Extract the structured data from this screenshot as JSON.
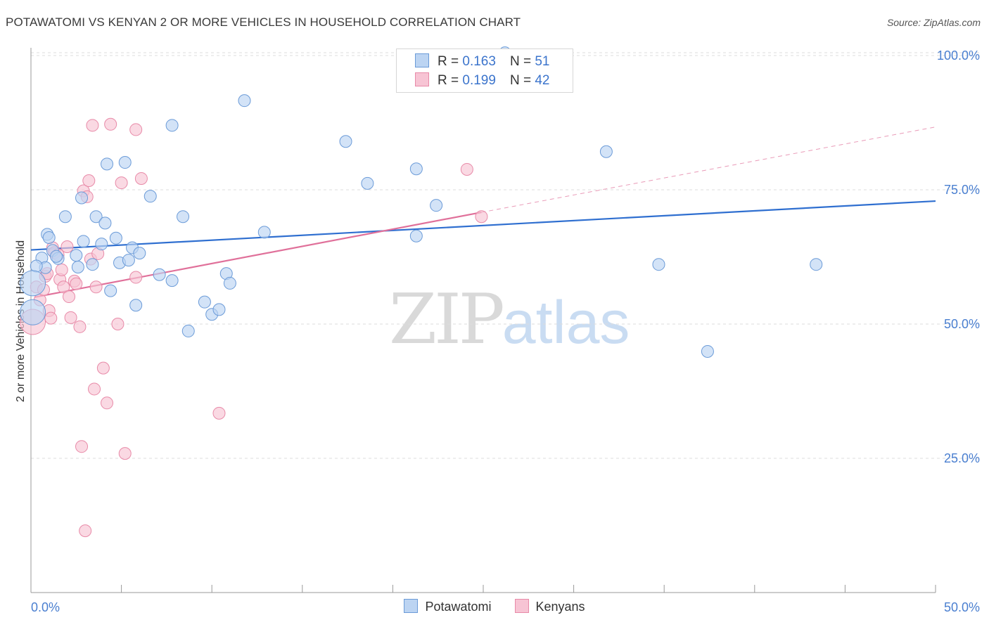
{
  "header": {
    "title": "POTAWATOMI VS KENYAN 2 OR MORE VEHICLES IN HOUSEHOLD CORRELATION CHART",
    "source": "Source: ZipAtlas.com"
  },
  "watermark": {
    "zip": "ZIP",
    "atlas": "atlas"
  },
  "legend": {
    "rows": [
      {
        "r_label": "R =",
        "r_value": "0.163",
        "n_label": "N =",
        "n_value": "51"
      },
      {
        "r_label": "R =",
        "r_value": "0.199",
        "n_label": "N =",
        "n_value": "42"
      }
    ]
  },
  "bottom_legend": [
    "Potawatomi",
    "Kenyans"
  ],
  "colors": {
    "blue_fill": "#bcd4f2",
    "blue_stroke": "#6b9bd8",
    "blue_line": "#2f6fd0",
    "pink_fill": "#f7c4d4",
    "pink_stroke": "#e88aa8",
    "pink_line": "#e0709a",
    "tick_text": "#4a7fd0",
    "grid": "#dddddd"
  },
  "chart_data": {
    "type": "scatter",
    "title": "POTAWATOMI VS KENYAN 2 OR MORE VEHICLES IN HOUSEHOLD CORRELATION CHART",
    "xlabel": "",
    "ylabel": "2 or more Vehicles in Household",
    "xlim": [
      0,
      50
    ],
    "ylim": [
      0,
      105
    ],
    "x_tick_labels": [
      "0.0%",
      "50.0%"
    ],
    "y_ticks": [
      {
        "value": 25,
        "label": "25.0%"
      },
      {
        "value": 50,
        "label": "50.0%"
      },
      {
        "value": 75,
        "label": "75.0%"
      },
      {
        "value": 100,
        "label": "100.0%"
      }
    ],
    "series": [
      {
        "name": "Potawatomi",
        "r": 0.163,
        "n": 51,
        "trend": {
          "x": [
            0,
            50
          ],
          "y": [
            63.8,
            72.9
          ],
          "extend_dashed_to": null
        },
        "points": [
          [
            0.6,
            62.3
          ],
          [
            0.9,
            66.7
          ],
          [
            1.0,
            66.1
          ],
          [
            1.2,
            63.7
          ],
          [
            1.5,
            62.2
          ],
          [
            0.8,
            60.5
          ],
          [
            0.3,
            60.8
          ],
          [
            1.4,
            62.6
          ],
          [
            1.9,
            70.0
          ],
          [
            2.5,
            62.8
          ],
          [
            2.6,
            60.6
          ],
          [
            2.8,
            73.5
          ],
          [
            2.9,
            65.4
          ],
          [
            3.4,
            61.1
          ],
          [
            3.6,
            70.0
          ],
          [
            3.9,
            64.9
          ],
          [
            4.1,
            68.8
          ],
          [
            4.2,
            79.8
          ],
          [
            4.4,
            56.2
          ],
          [
            4.7,
            66.0
          ],
          [
            4.9,
            61.4
          ],
          [
            5.2,
            80.1
          ],
          [
            5.4,
            61.9
          ],
          [
            5.6,
            64.2
          ],
          [
            5.8,
            53.5
          ],
          [
            6.0,
            63.2
          ],
          [
            6.6,
            73.8
          ],
          [
            7.1,
            59.2
          ],
          [
            7.8,
            58.1
          ],
          [
            7.8,
            87.0
          ],
          [
            8.4,
            70.0
          ],
          [
            8.7,
            48.7
          ],
          [
            9.6,
            54.1
          ],
          [
            10.0,
            51.8
          ],
          [
            10.4,
            52.7
          ],
          [
            10.8,
            59.4
          ],
          [
            11.0,
            57.6
          ],
          [
            11.8,
            91.6
          ],
          [
            12.9,
            67.1
          ],
          [
            17.4,
            84.0
          ],
          [
            18.6,
            76.2
          ],
          [
            21.3,
            78.9
          ],
          [
            21.3,
            66.4
          ],
          [
            22.4,
            72.1
          ],
          [
            26.2,
            100.5
          ],
          [
            31.8,
            82.1
          ],
          [
            34.7,
            61.1
          ],
          [
            37.4,
            44.9
          ],
          [
            43.4,
            61.1
          ],
          [
            0.1,
            52.2
          ],
          [
            0.1,
            57.6
          ]
        ]
      },
      {
        "name": "Kenyans",
        "r": 0.199,
        "n": 42,
        "trend": {
          "x": [
            0.2,
            24.9
          ],
          "y": [
            55.0,
            70.8
          ],
          "extend_dashed_to": {
            "x": 50,
            "y": 86.7
          }
        },
        "points": [
          [
            0.1,
            50.4
          ],
          [
            0.3,
            56.9
          ],
          [
            0.5,
            54.5
          ],
          [
            0.7,
            56.4
          ],
          [
            0.8,
            58.9
          ],
          [
            0.9,
            59.4
          ],
          [
            1.0,
            52.5
          ],
          [
            1.1,
            51.1
          ],
          [
            1.2,
            64.2
          ],
          [
            1.3,
            63.3
          ],
          [
            1.5,
            62.9
          ],
          [
            1.6,
            58.3
          ],
          [
            1.7,
            60.1
          ],
          [
            1.8,
            56.9
          ],
          [
            2.0,
            64.4
          ],
          [
            2.1,
            55.1
          ],
          [
            2.2,
            51.2
          ],
          [
            2.4,
            58.0
          ],
          [
            2.5,
            57.5
          ],
          [
            2.7,
            49.5
          ],
          [
            2.8,
            27.2
          ],
          [
            2.9,
            74.8
          ],
          [
            3.0,
            11.5
          ],
          [
            3.1,
            73.7
          ],
          [
            3.2,
            76.7
          ],
          [
            3.3,
            62.1
          ],
          [
            3.4,
            87.0
          ],
          [
            3.5,
            37.9
          ],
          [
            3.6,
            56.9
          ],
          [
            3.7,
            63.1
          ],
          [
            4.0,
            41.8
          ],
          [
            4.2,
            35.3
          ],
          [
            4.4,
            87.2
          ],
          [
            4.8,
            50.0
          ],
          [
            5.0,
            76.3
          ],
          [
            5.2,
            25.9
          ],
          [
            5.8,
            86.2
          ],
          [
            6.1,
            77.1
          ],
          [
            5.8,
            58.7
          ],
          [
            10.4,
            33.4
          ],
          [
            24.1,
            78.8
          ],
          [
            24.9,
            70.0
          ]
        ]
      }
    ]
  }
}
